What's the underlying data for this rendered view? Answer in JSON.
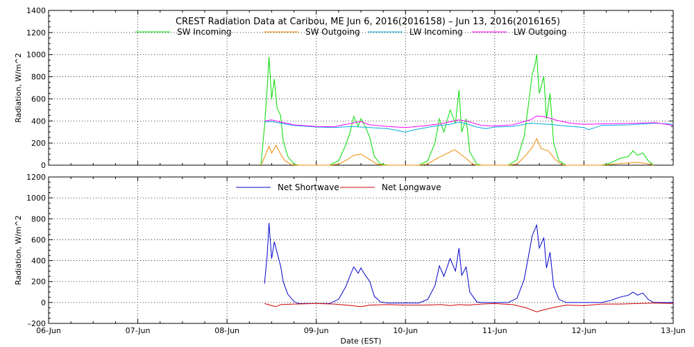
{
  "title": "CREST Radiation Data at Caribou, ME   Jun  6, 2016(2016158) – Jun 13, 2016(2016165)",
  "xlabel": "Date (EST)",
  "chart_data": [
    {
      "type": "line",
      "ylabel": "Radiation, W/m^2",
      "ylim": [
        0,
        1400
      ],
      "yticks": [
        "0",
        "200",
        "400",
        "600",
        "800",
        "1000",
        "1200",
        "1400"
      ],
      "xlim": [
        "2016-06-06",
        "2016-06-13"
      ],
      "xticks": [
        "06-Jun",
        "07-Jun",
        "08-Jun",
        "09-Jun",
        "10-Jun",
        "11-Jun",
        "12-Jun",
        "13-Jun"
      ],
      "grid": true,
      "legend_position": "top",
      "series": [
        {
          "name": "SW Incoming",
          "color": "#00dd00",
          "points": [
            [
              8.38,
              0
            ],
            [
              8.42,
              350
            ],
            [
              8.45,
              700
            ],
            [
              8.47,
              980
            ],
            [
              8.5,
              600
            ],
            [
              8.53,
              780
            ],
            [
              8.56,
              520
            ],
            [
              8.6,
              450
            ],
            [
              8.63,
              220
            ],
            [
              8.68,
              80
            ],
            [
              8.75,
              10
            ],
            [
              8.8,
              0
            ],
            [
              9.15,
              0
            ],
            [
              9.25,
              40
            ],
            [
              9.33,
              180
            ],
            [
              9.38,
              300
            ],
            [
              9.42,
              440
            ],
            [
              9.47,
              350
            ],
            [
              9.5,
              420
            ],
            [
              9.55,
              350
            ],
            [
              9.6,
              250
            ],
            [
              9.65,
              80
            ],
            [
              9.72,
              10
            ],
            [
              9.8,
              0
            ],
            [
              10.15,
              0
            ],
            [
              10.25,
              40
            ],
            [
              10.33,
              200
            ],
            [
              10.38,
              420
            ],
            [
              10.43,
              300
            ],
            [
              10.5,
              500
            ],
            [
              10.56,
              380
            ],
            [
              10.6,
              680
            ],
            [
              10.63,
              300
            ],
            [
              10.68,
              420
            ],
            [
              10.72,
              120
            ],
            [
              10.8,
              10
            ],
            [
              10.85,
              0
            ],
            [
              11.15,
              0
            ],
            [
              11.25,
              50
            ],
            [
              11.33,
              260
            ],
            [
              11.38,
              560
            ],
            [
              11.42,
              820
            ],
            [
              11.45,
              900
            ],
            [
              11.47,
              1000
            ],
            [
              11.5,
              650
            ],
            [
              11.55,
              800
            ],
            [
              11.58,
              420
            ],
            [
              11.62,
              650
            ],
            [
              11.66,
              200
            ],
            [
              11.72,
              40
            ],
            [
              11.8,
              0
            ],
            [
              12.2,
              0
            ],
            [
              12.3,
              20
            ],
            [
              12.4,
              60
            ],
            [
              12.5,
              80
            ],
            [
              12.55,
              130
            ],
            [
              12.6,
              90
            ],
            [
              12.66,
              110
            ],
            [
              12.72,
              40
            ],
            [
              12.78,
              0
            ]
          ]
        },
        {
          "name": "SW Outgoing",
          "color": "#ee8800",
          "points": [
            [
              8.38,
              0
            ],
            [
              8.42,
              70
            ],
            [
              8.47,
              170
            ],
            [
              8.5,
              110
            ],
            [
              8.55,
              180
            ],
            [
              8.6,
              100
            ],
            [
              8.65,
              40
            ],
            [
              8.72,
              5
            ],
            [
              8.8,
              0
            ],
            [
              9.15,
              0
            ],
            [
              9.25,
              10
            ],
            [
              9.35,
              50
            ],
            [
              9.42,
              90
            ],
            [
              9.5,
              100
            ],
            [
              9.58,
              60
            ],
            [
              9.68,
              10
            ],
            [
              9.75,
              0
            ],
            [
              10.15,
              0
            ],
            [
              10.25,
              10
            ],
            [
              10.35,
              60
            ],
            [
              10.45,
              100
            ],
            [
              10.55,
              140
            ],
            [
              10.6,
              110
            ],
            [
              10.68,
              60
            ],
            [
              10.75,
              10
            ],
            [
              10.8,
              0
            ],
            [
              11.15,
              0
            ],
            [
              11.25,
              10
            ],
            [
              11.35,
              90
            ],
            [
              11.42,
              160
            ],
            [
              11.47,
              240
            ],
            [
              11.52,
              150
            ],
            [
              11.6,
              130
            ],
            [
              11.68,
              50
            ],
            [
              11.75,
              5
            ],
            [
              11.8,
              0
            ],
            [
              12.2,
              0
            ],
            [
              12.35,
              10
            ],
            [
              12.5,
              20
            ],
            [
              12.6,
              25
            ],
            [
              12.7,
              15
            ],
            [
              12.78,
              0
            ]
          ]
        },
        {
          "name": "LW Incoming",
          "color": "#00aadd",
          "points": [
            [
              8.42,
              390
            ],
            [
              8.5,
              395
            ],
            [
              8.6,
              380
            ],
            [
              8.75,
              360
            ],
            [
              9.0,
              345
            ],
            [
              9.2,
              340
            ],
            [
              9.4,
              350
            ],
            [
              9.6,
              340
            ],
            [
              9.8,
              330
            ],
            [
              9.9,
              315
            ],
            [
              10.0,
              300
            ],
            [
              10.1,
              320
            ],
            [
              10.3,
              350
            ],
            [
              10.5,
              370
            ],
            [
              10.6,
              390
            ],
            [
              10.7,
              370
            ],
            [
              10.8,
              345
            ],
            [
              10.9,
              330
            ],
            [
              11.0,
              345
            ],
            [
              11.2,
              350
            ],
            [
              11.4,
              380
            ],
            [
              11.6,
              370
            ],
            [
              11.8,
              355
            ],
            [
              12.0,
              340
            ],
            [
              12.05,
              320
            ],
            [
              12.2,
              360
            ],
            [
              12.5,
              365
            ],
            [
              12.8,
              380
            ],
            [
              13.0,
              370
            ]
          ]
        },
        {
          "name": "LW Outgoing",
          "color": "#ff00ff",
          "points": [
            [
              8.42,
              400
            ],
            [
              8.5,
              410
            ],
            [
              8.6,
              390
            ],
            [
              8.75,
              365
            ],
            [
              9.0,
              350
            ],
            [
              9.2,
              348
            ],
            [
              9.4,
              380
            ],
            [
              9.5,
              395
            ],
            [
              9.6,
              365
            ],
            [
              9.8,
              350
            ],
            [
              10.0,
              340
            ],
            [
              10.2,
              355
            ],
            [
              10.4,
              375
            ],
            [
              10.6,
              410
            ],
            [
              10.7,
              395
            ],
            [
              10.85,
              360
            ],
            [
              11.0,
              355
            ],
            [
              11.2,
              365
            ],
            [
              11.4,
              410
            ],
            [
              11.47,
              445
            ],
            [
              11.55,
              440
            ],
            [
              11.7,
              405
            ],
            [
              11.85,
              380
            ],
            [
              12.0,
              370
            ],
            [
              12.3,
              375
            ],
            [
              12.6,
              380
            ],
            [
              12.8,
              385
            ],
            [
              13.0,
              360
            ]
          ]
        }
      ]
    },
    {
      "type": "line",
      "ylabel": "Radiation, W/m^2",
      "ylim": [
        -200,
        1200
      ],
      "yticks": [
        "–200",
        "0",
        "200",
        "400",
        "600",
        "800",
        "1000",
        "1200"
      ],
      "xlim": [
        "2016-06-06",
        "2016-06-13"
      ],
      "xticks": [
        "06-Jun",
        "07-Jun",
        "08-Jun",
        "09-Jun",
        "10-Jun",
        "11-Jun",
        "12-Jun",
        "13-Jun"
      ],
      "grid": true,
      "legend_position": "top",
      "series": [
        {
          "name": "Net Shortwave",
          "color": "#0000cc",
          "points": [
            [
              8.42,
              180
            ],
            [
              8.45,
              450
            ],
            [
              8.47,
              760
            ],
            [
              8.5,
              420
            ],
            [
              8.53,
              580
            ],
            [
              8.56,
              480
            ],
            [
              8.6,
              350
            ],
            [
              8.63,
              200
            ],
            [
              8.68,
              80
            ],
            [
              8.75,
              10
            ],
            [
              8.8,
              -10
            ],
            [
              9.15,
              -10
            ],
            [
              9.25,
              30
            ],
            [
              9.33,
              150
            ],
            [
              9.38,
              260
            ],
            [
              9.42,
              340
            ],
            [
              9.47,
              280
            ],
            [
              9.5,
              330
            ],
            [
              9.55,
              260
            ],
            [
              9.6,
              200
            ],
            [
              9.65,
              60
            ],
            [
              9.72,
              5
            ],
            [
              9.8,
              -5
            ],
            [
              10.15,
              -5
            ],
            [
              10.25,
              30
            ],
            [
              10.33,
              160
            ],
            [
              10.38,
              350
            ],
            [
              10.43,
              250
            ],
            [
              10.5,
              420
            ],
            [
              10.56,
              300
            ],
            [
              10.6,
              520
            ],
            [
              10.63,
              260
            ],
            [
              10.68,
              340
            ],
            [
              10.72,
              100
            ],
            [
              10.8,
              5
            ],
            [
              10.85,
              0
            ],
            [
              11.15,
              0
            ],
            [
              11.25,
              40
            ],
            [
              11.33,
              220
            ],
            [
              11.38,
              450
            ],
            [
              11.42,
              640
            ],
            [
              11.45,
              700
            ],
            [
              11.47,
              740
            ],
            [
              11.5,
              520
            ],
            [
              11.55,
              620
            ],
            [
              11.58,
              330
            ],
            [
              11.62,
              480
            ],
            [
              11.66,
              160
            ],
            [
              11.72,
              30
            ],
            [
              11.8,
              0
            ],
            [
              12.2,
              0
            ],
            [
              12.3,
              20
            ],
            [
              12.4,
              50
            ],
            [
              12.5,
              70
            ],
            [
              12.55,
              100
            ],
            [
              12.6,
              70
            ],
            [
              12.66,
              90
            ],
            [
              12.72,
              30
            ],
            [
              12.78,
              0
            ],
            [
              13.0,
              0
            ]
          ]
        },
        {
          "name": "Net Longwave",
          "color": "#cc0000",
          "points": [
            [
              8.42,
              -10
            ],
            [
              8.5,
              -30
            ],
            [
              8.55,
              -40
            ],
            [
              8.6,
              -20
            ],
            [
              8.75,
              -15
            ],
            [
              9.0,
              -10
            ],
            [
              9.2,
              -15
            ],
            [
              9.4,
              -30
            ],
            [
              9.5,
              -40
            ],
            [
              9.6,
              -25
            ],
            [
              9.8,
              -20
            ],
            [
              10.0,
              -25
            ],
            [
              10.2,
              -25
            ],
            [
              10.4,
              -20
            ],
            [
              10.5,
              -30
            ],
            [
              10.6,
              -20
            ],
            [
              10.7,
              -25
            ],
            [
              10.85,
              -15
            ],
            [
              11.0,
              -10
            ],
            [
              11.2,
              -20
            ],
            [
              11.35,
              -50
            ],
            [
              11.47,
              -90
            ],
            [
              11.55,
              -70
            ],
            [
              11.65,
              -50
            ],
            [
              11.8,
              -25
            ],
            [
              12.0,
              -30
            ],
            [
              12.2,
              -15
            ],
            [
              12.4,
              -15
            ],
            [
              12.6,
              -10
            ],
            [
              12.8,
              -5
            ],
            [
              13.0,
              -10
            ]
          ]
        }
      ]
    }
  ]
}
